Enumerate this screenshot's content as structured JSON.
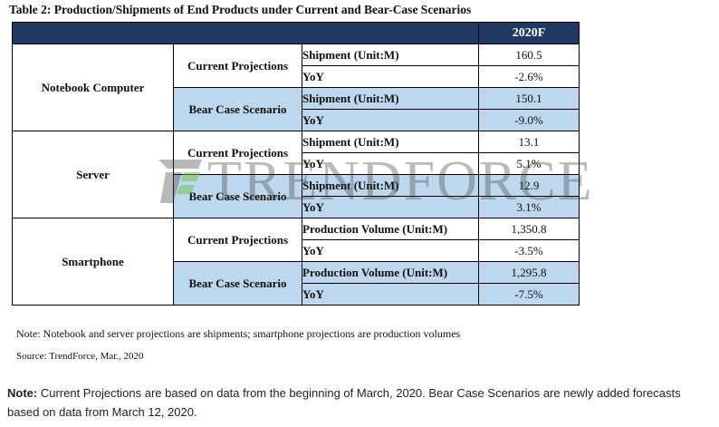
{
  "table": {
    "title": "Table 2: Production/Shipments of End Products under Current and Bear-Case Scenarios",
    "year_header": "2020F",
    "groups": [
      {
        "product": "Notebook Computer",
        "scenarios": [
          {
            "name": "Current Projections",
            "rows": [
              {
                "metric": "Shipment (Unit:M)",
                "value": "160.5"
              },
              {
                "metric": "YoY",
                "value": "-2.6%"
              }
            ]
          },
          {
            "name": "Bear Case Scenario",
            "rows": [
              {
                "metric": "Shipment (Unit:M)",
                "value": "150.1"
              },
              {
                "metric": "YoY",
                "value": "-9.0%"
              }
            ]
          }
        ]
      },
      {
        "product": "Server",
        "scenarios": [
          {
            "name": "Current Projections",
            "rows": [
              {
                "metric": "Shipment (Unit:M)",
                "value": "13.1"
              },
              {
                "metric": "YoY",
                "value": "5.1%"
              }
            ]
          },
          {
            "name": "Bear Case Scenario",
            "rows": [
              {
                "metric": "Shipment (Unit:M)",
                "value": "12.9"
              },
              {
                "metric": "YoY",
                "value": "3.1%"
              }
            ]
          }
        ]
      },
      {
        "product": "Smartphone",
        "scenarios": [
          {
            "name": "Current Projections",
            "rows": [
              {
                "metric": "Production Volume (Unit:M)",
                "value": "1,350.8"
              },
              {
                "metric": "YoY",
                "value": "-3.5%"
              }
            ]
          },
          {
            "name": "Bear Case Scenario",
            "rows": [
              {
                "metric": "Production Volume (Unit:M)",
                "value": "1,295.8"
              },
              {
                "metric": "YoY",
                "value": "-7.5%"
              }
            ]
          }
        ]
      }
    ]
  },
  "watermark": {
    "text": "TRENDFORCE",
    "logo_icon": "trendforce-logo-icon"
  },
  "note": "Note: Notebook and server projections are shipments; smartphone projections are production volumes",
  "source": "Source: TrendForce, Mar., 2020",
  "footnote": {
    "label": "Note:",
    "text": " Current Projections are based on data from the beginning of March, 2020. Bear Case Scenarios are newly added forecasts based on data from March 12, 2020."
  },
  "colors": {
    "header_bg": "#1f3864",
    "bear_bg": "#bdd7ee"
  }
}
